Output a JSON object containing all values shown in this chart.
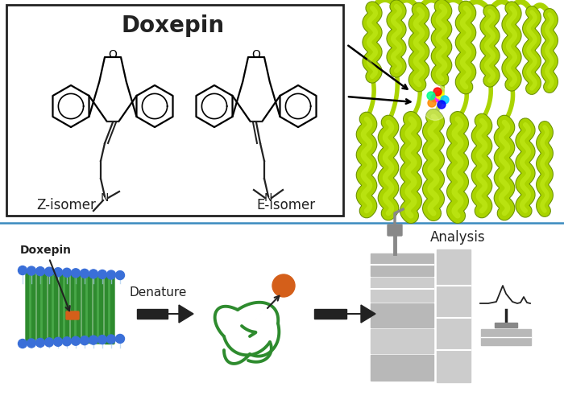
{
  "doxepin_label": "Doxepin",
  "z_isomer_label": "Z-isomer",
  "e_isomer_label": "E-isomer",
  "denature_label": "Denature",
  "analysis_label": "Analysis",
  "membrane_label": "Doxepin",
  "bg_color": "#ffffff",
  "box_color": "#222222",
  "protein_color": "#aad400",
  "membrane_green": "#2e8b2e",
  "membrane_blue": "#3a6fd8",
  "orange_dot": "#d45f1a",
  "gray_eq": "#b8b8b8",
  "gray_dark": "#888888",
  "gray_mid": "#cccccc",
  "divider_color": "#3a8abf",
  "lw": 1.6
}
